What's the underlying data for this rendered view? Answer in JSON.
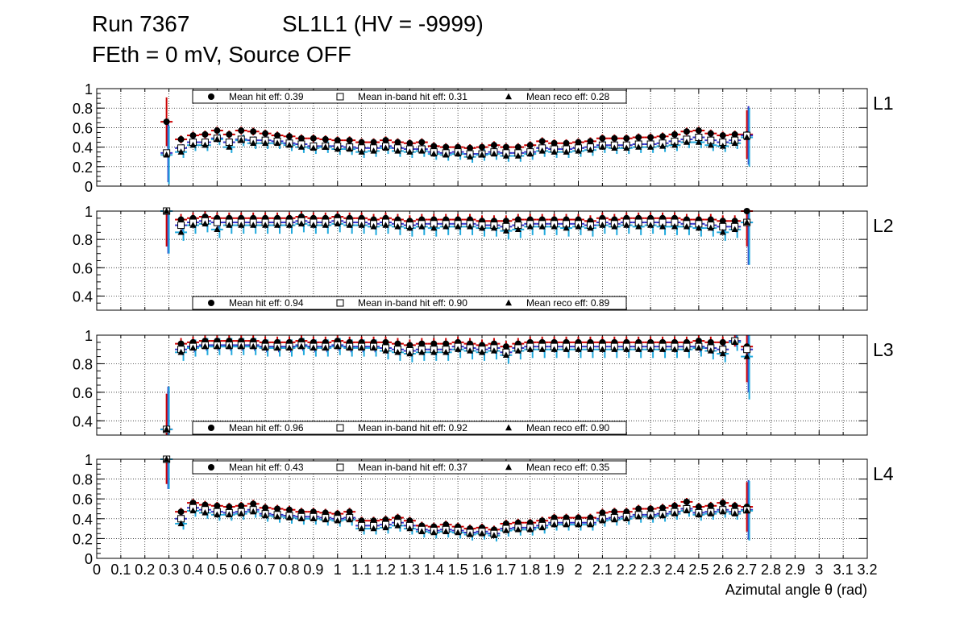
{
  "header": {
    "run": "Run 7367",
    "chamber": "SL1L1 (HV = -9999)",
    "settings": "FEth = 0 mV, Source OFF"
  },
  "axis": {
    "xlabel": "Azimutal angle θ (rad)",
    "xlim": [
      0,
      3.2
    ],
    "xticks": [
      "0",
      "0.1",
      "0.2",
      "0.3",
      "0.4",
      "0.5",
      "0.6",
      "0.7",
      "0.8",
      "0.9",
      "1",
      "1.1",
      "1.2",
      "1.3",
      "1.4",
      "1.5",
      "1.6",
      "1.7",
      "1.8",
      "1.9",
      "2",
      "2.1",
      "2.2",
      "2.3",
      "2.4",
      "2.5",
      "2.6",
      "2.7",
      "2.8",
      "2.9",
      "3",
      "3.1",
      "3.2"
    ]
  },
  "legend_labels": {
    "hit": "Mean hit  eff:",
    "inband": "Mean in-band hit eff:",
    "reco": "Mean reco eff:"
  },
  "colors": {
    "hit": "#cc0000",
    "inband": "#3333cc",
    "reco": "#22aadd",
    "frame": "#000000"
  },
  "chart_data": [
    {
      "type": "scatter",
      "layer": "L1",
      "ylim": [
        0,
        1
      ],
      "yticks": [
        "0",
        "0.2",
        "0.4",
        "0.6",
        "0.8",
        "1"
      ],
      "legend_position": "top",
      "means": {
        "hit": "0.39",
        "inband": "0.31",
        "reco": "0.28"
      },
      "x": [
        0.29,
        0.35,
        0.4,
        0.45,
        0.5,
        0.55,
        0.6,
        0.65,
        0.7,
        0.75,
        0.8,
        0.85,
        0.9,
        0.95,
        1.0,
        1.05,
        1.1,
        1.15,
        1.2,
        1.25,
        1.3,
        1.35,
        1.4,
        1.45,
        1.5,
        1.55,
        1.6,
        1.65,
        1.7,
        1.75,
        1.8,
        1.85,
        1.9,
        1.95,
        2.0,
        2.05,
        2.1,
        2.15,
        2.2,
        2.25,
        2.3,
        2.35,
        2.4,
        2.45,
        2.5,
        2.55,
        2.6,
        2.65,
        2.7
      ],
      "series": [
        {
          "name": "hit",
          "values": [
            0.66,
            0.48,
            0.52,
            0.53,
            0.57,
            0.53,
            0.57,
            0.56,
            0.54,
            0.52,
            0.51,
            0.49,
            0.49,
            0.48,
            0.47,
            0.47,
            0.45,
            0.45,
            0.47,
            0.45,
            0.44,
            0.45,
            0.41,
            0.4,
            0.4,
            0.39,
            0.4,
            0.42,
            0.4,
            0.4,
            0.42,
            0.46,
            0.44,
            0.44,
            0.45,
            0.46,
            0.49,
            0.49,
            0.49,
            0.5,
            0.5,
            0.51,
            0.53,
            0.56,
            0.57,
            0.54,
            0.52,
            0.53,
            0.53
          ]
        },
        {
          "name": "inband",
          "values": [
            0.34,
            0.39,
            0.45,
            0.45,
            0.49,
            0.45,
            0.48,
            0.47,
            0.47,
            0.46,
            0.44,
            0.43,
            0.41,
            0.41,
            0.41,
            0.4,
            0.39,
            0.39,
            0.41,
            0.39,
            0.38,
            0.38,
            0.35,
            0.34,
            0.35,
            0.33,
            0.33,
            0.35,
            0.34,
            0.34,
            0.35,
            0.39,
            0.38,
            0.38,
            0.39,
            0.4,
            0.42,
            0.42,
            0.42,
            0.43,
            0.43,
            0.44,
            0.46,
            0.48,
            0.5,
            0.47,
            0.45,
            0.47,
            0.52
          ]
        },
        {
          "name": "reco",
          "values": [
            0.32,
            0.35,
            0.42,
            0.42,
            0.48,
            0.4,
            0.47,
            0.44,
            0.44,
            0.44,
            0.42,
            0.4,
            0.39,
            0.4,
            0.38,
            0.38,
            0.35,
            0.36,
            0.39,
            0.36,
            0.35,
            0.36,
            0.33,
            0.32,
            0.33,
            0.3,
            0.32,
            0.33,
            0.31,
            0.31,
            0.33,
            0.36,
            0.35,
            0.35,
            0.36,
            0.37,
            0.4,
            0.39,
            0.39,
            0.4,
            0.4,
            0.41,
            0.42,
            0.45,
            0.45,
            0.42,
            0.41,
            0.44,
            0.5
          ]
        }
      ]
    },
    {
      "type": "scatter",
      "layer": "L2",
      "ylim": [
        0.3,
        1
      ],
      "yticks": [
        "0.4",
        "0.6",
        "0.8",
        "1"
      ],
      "legend_position": "bottom",
      "means": {
        "hit": "0.94",
        "inband": "0.90",
        "reco": "0.89"
      },
      "x": [
        0.29,
        0.35,
        0.4,
        0.45,
        0.5,
        0.55,
        0.6,
        0.65,
        0.7,
        0.75,
        0.8,
        0.85,
        0.9,
        0.95,
        1.0,
        1.05,
        1.1,
        1.15,
        1.2,
        1.25,
        1.3,
        1.35,
        1.4,
        1.45,
        1.5,
        1.55,
        1.6,
        1.65,
        1.7,
        1.75,
        1.8,
        1.85,
        1.9,
        1.95,
        2.0,
        2.05,
        2.1,
        2.15,
        2.2,
        2.25,
        2.3,
        2.35,
        2.4,
        2.45,
        2.5,
        2.55,
        2.6,
        2.65,
        2.7
      ],
      "series": [
        {
          "name": "hit",
          "values": [
            1.0,
            0.94,
            0.95,
            0.96,
            0.95,
            0.95,
            0.95,
            0.95,
            0.95,
            0.95,
            0.95,
            0.96,
            0.95,
            0.95,
            0.96,
            0.95,
            0.95,
            0.94,
            0.95,
            0.94,
            0.93,
            0.94,
            0.94,
            0.94,
            0.94,
            0.94,
            0.93,
            0.93,
            0.93,
            0.94,
            0.94,
            0.94,
            0.94,
            0.94,
            0.94,
            0.93,
            0.95,
            0.94,
            0.95,
            0.95,
            0.95,
            0.95,
            0.95,
            0.94,
            0.94,
            0.94,
            0.93,
            0.93,
            1.0
          ]
        },
        {
          "name": "inband",
          "values": [
            1.0,
            0.9,
            0.92,
            0.93,
            0.92,
            0.92,
            0.92,
            0.92,
            0.92,
            0.92,
            0.92,
            0.93,
            0.92,
            0.92,
            0.93,
            0.92,
            0.92,
            0.91,
            0.92,
            0.91,
            0.9,
            0.91,
            0.91,
            0.91,
            0.91,
            0.91,
            0.9,
            0.9,
            0.89,
            0.9,
            0.91,
            0.91,
            0.91,
            0.91,
            0.91,
            0.9,
            0.92,
            0.91,
            0.92,
            0.92,
            0.92,
            0.92,
            0.92,
            0.91,
            0.91,
            0.9,
            0.89,
            0.89,
            0.92
          ]
        },
        {
          "name": "reco",
          "values": [
            1.0,
            0.85,
            0.9,
            0.91,
            0.87,
            0.9,
            0.9,
            0.9,
            0.9,
            0.9,
            0.9,
            0.91,
            0.9,
            0.9,
            0.91,
            0.9,
            0.9,
            0.89,
            0.9,
            0.89,
            0.88,
            0.89,
            0.88,
            0.89,
            0.89,
            0.89,
            0.88,
            0.88,
            0.86,
            0.87,
            0.89,
            0.89,
            0.89,
            0.88,
            0.89,
            0.88,
            0.9,
            0.89,
            0.9,
            0.89,
            0.9,
            0.89,
            0.89,
            0.89,
            0.88,
            0.88,
            0.85,
            0.87,
            0.92
          ]
        }
      ]
    },
    {
      "type": "scatter",
      "layer": "L3",
      "ylim": [
        0.3,
        1
      ],
      "yticks": [
        "0.4",
        "0.6",
        "0.8",
        "1"
      ],
      "legend_position": "bottom",
      "means": {
        "hit": "0.96",
        "inband": "0.92",
        "reco": "0.90"
      },
      "x": [
        0.29,
        0.35,
        0.4,
        0.45,
        0.5,
        0.55,
        0.6,
        0.65,
        0.7,
        0.75,
        0.8,
        0.85,
        0.9,
        0.95,
        1.0,
        1.05,
        1.1,
        1.15,
        1.2,
        1.25,
        1.3,
        1.35,
        1.4,
        1.45,
        1.5,
        1.55,
        1.6,
        1.65,
        1.7,
        1.75,
        1.8,
        1.85,
        1.9,
        1.95,
        2.0,
        2.05,
        2.1,
        2.15,
        2.2,
        2.25,
        2.3,
        2.35,
        2.4,
        2.45,
        2.5,
        2.55,
        2.6,
        2.65,
        2.7
      ],
      "series": [
        {
          "name": "hit",
          "values": [
            0.34,
            0.94,
            0.95,
            0.96,
            0.96,
            0.96,
            0.96,
            0.96,
            0.95,
            0.95,
            0.95,
            0.96,
            0.95,
            0.95,
            0.96,
            0.95,
            0.95,
            0.95,
            0.95,
            0.94,
            0.93,
            0.94,
            0.94,
            0.94,
            0.95,
            0.94,
            0.93,
            0.94,
            0.92,
            0.94,
            0.95,
            0.95,
            0.95,
            0.95,
            0.95,
            0.95,
            0.95,
            0.95,
            0.95,
            0.95,
            0.95,
            0.95,
            0.95,
            0.95,
            0.96,
            0.95,
            0.95,
            0.96,
            0.92
          ]
        },
        {
          "name": "inband",
          "values": [
            0.34,
            0.9,
            0.92,
            0.93,
            0.93,
            0.93,
            0.93,
            0.93,
            0.92,
            0.92,
            0.92,
            0.93,
            0.92,
            0.92,
            0.93,
            0.92,
            0.92,
            0.92,
            0.91,
            0.9,
            0.89,
            0.9,
            0.9,
            0.9,
            0.92,
            0.91,
            0.9,
            0.91,
            0.88,
            0.91,
            0.92,
            0.92,
            0.92,
            0.92,
            0.92,
            0.92,
            0.92,
            0.92,
            0.92,
            0.92,
            0.92,
            0.92,
            0.92,
            0.92,
            0.92,
            0.91,
            0.9,
            0.96,
            0.9
          ]
        },
        {
          "name": "reco",
          "values": [
            0.34,
            0.88,
            0.91,
            0.92,
            0.92,
            0.92,
            0.92,
            0.92,
            0.91,
            0.91,
            0.91,
            0.92,
            0.91,
            0.91,
            0.92,
            0.91,
            0.91,
            0.91,
            0.89,
            0.88,
            0.87,
            0.88,
            0.88,
            0.88,
            0.9,
            0.89,
            0.88,
            0.89,
            0.86,
            0.89,
            0.9,
            0.9,
            0.9,
            0.9,
            0.9,
            0.9,
            0.9,
            0.9,
            0.9,
            0.9,
            0.9,
            0.9,
            0.9,
            0.9,
            0.91,
            0.89,
            0.87,
            0.95,
            0.85
          ]
        }
      ]
    },
    {
      "type": "scatter",
      "layer": "L4",
      "ylim": [
        0,
        1
      ],
      "yticks": [
        "0",
        "0.2",
        "0.4",
        "0.6",
        "0.8",
        "1"
      ],
      "legend_position": "top",
      "means": {
        "hit": "0.43",
        "inband": "0.37",
        "reco": "0.35"
      },
      "x": [
        0.29,
        0.35,
        0.4,
        0.45,
        0.5,
        0.55,
        0.6,
        0.65,
        0.7,
        0.75,
        0.8,
        0.85,
        0.9,
        0.95,
        1.0,
        1.05,
        1.1,
        1.15,
        1.2,
        1.25,
        1.3,
        1.35,
        1.4,
        1.45,
        1.5,
        1.55,
        1.6,
        1.65,
        1.7,
        1.75,
        1.8,
        1.85,
        1.9,
        1.95,
        2.0,
        2.05,
        2.1,
        2.15,
        2.2,
        2.25,
        2.3,
        2.35,
        2.4,
        2.45,
        2.5,
        2.55,
        2.6,
        2.65,
        2.7
      ],
      "series": [
        {
          "name": "hit",
          "values": [
            1.0,
            0.47,
            0.56,
            0.54,
            0.53,
            0.52,
            0.53,
            0.55,
            0.51,
            0.5,
            0.49,
            0.47,
            0.47,
            0.46,
            0.45,
            0.47,
            0.38,
            0.38,
            0.39,
            0.41,
            0.38,
            0.33,
            0.32,
            0.34,
            0.32,
            0.3,
            0.31,
            0.29,
            0.35,
            0.36,
            0.36,
            0.38,
            0.41,
            0.41,
            0.41,
            0.41,
            0.46,
            0.47,
            0.47,
            0.5,
            0.5,
            0.51,
            0.53,
            0.57,
            0.52,
            0.53,
            0.56,
            0.53,
            0.52
          ]
        },
        {
          "name": "inband",
          "values": [
            1.0,
            0.4,
            0.51,
            0.49,
            0.47,
            0.46,
            0.47,
            0.49,
            0.45,
            0.44,
            0.43,
            0.42,
            0.42,
            0.41,
            0.4,
            0.41,
            0.33,
            0.33,
            0.34,
            0.36,
            0.33,
            0.29,
            0.28,
            0.29,
            0.28,
            0.26,
            0.27,
            0.25,
            0.3,
            0.31,
            0.31,
            0.33,
            0.36,
            0.36,
            0.36,
            0.36,
            0.4,
            0.41,
            0.42,
            0.44,
            0.44,
            0.45,
            0.47,
            0.5,
            0.46,
            0.47,
            0.49,
            0.47,
            0.49
          ]
        },
        {
          "name": "reco",
          "values": [
            1.0,
            0.35,
            0.48,
            0.46,
            0.44,
            0.44,
            0.45,
            0.47,
            0.43,
            0.42,
            0.41,
            0.4,
            0.4,
            0.39,
            0.38,
            0.39,
            0.3,
            0.3,
            0.31,
            0.33,
            0.3,
            0.27,
            0.26,
            0.27,
            0.26,
            0.24,
            0.25,
            0.23,
            0.28,
            0.29,
            0.29,
            0.31,
            0.34,
            0.34,
            0.34,
            0.34,
            0.38,
            0.39,
            0.4,
            0.42,
            0.42,
            0.43,
            0.45,
            0.48,
            0.44,
            0.45,
            0.47,
            0.45,
            0.48
          ]
        }
      ]
    }
  ]
}
